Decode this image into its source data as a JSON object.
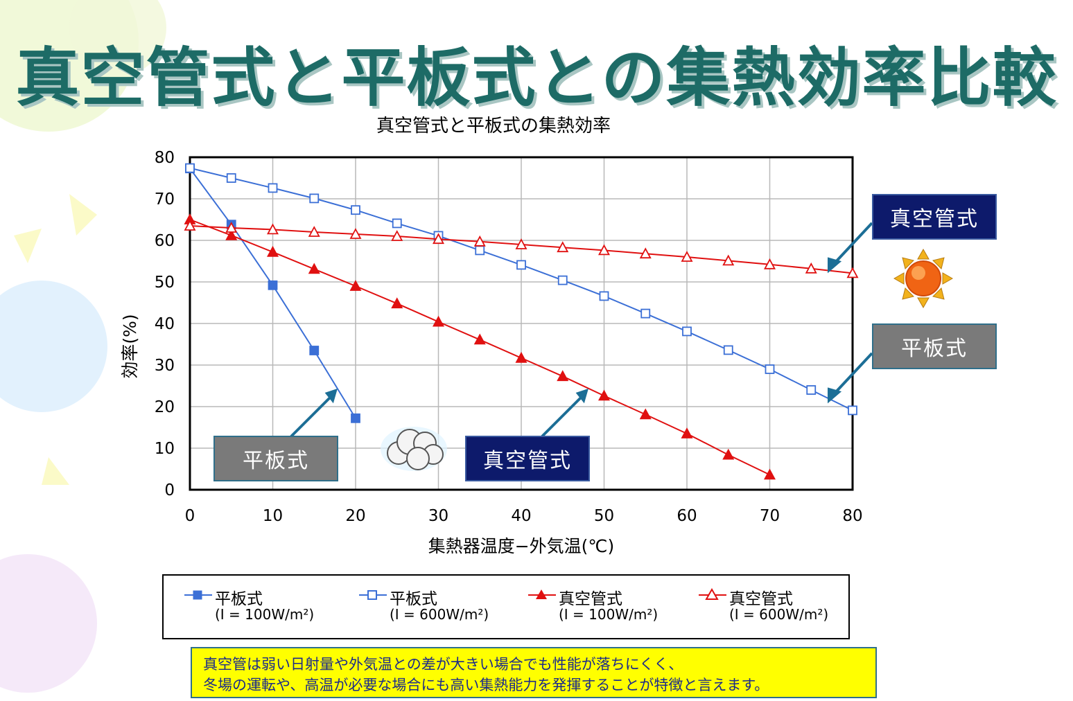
{
  "slide_title": "真空管式と平板式との集熱効率比較",
  "chart_data": {
    "type": "line",
    "title": "真空管式と平板式の集熱効率",
    "xlabel": "集熱器温度−外気温(℃)",
    "ylabel": "効率(%)",
    "xlim": [
      0,
      80
    ],
    "ylim": [
      0,
      80
    ],
    "xticks": [
      "0",
      "10",
      "20",
      "30",
      "40",
      "50",
      "60",
      "70",
      "80"
    ],
    "yticks": [
      "0",
      "10",
      "20",
      "30",
      "40",
      "50",
      "60",
      "70",
      "80"
    ],
    "grid": true,
    "legend_position": "bottom",
    "series": [
      {
        "name": "平板式",
        "condition": "(I = 100W/m²)",
        "color": "#3b6fd6",
        "marker": "square-filled",
        "x": [
          0,
          5,
          10,
          15,
          20
        ],
        "y": [
          77.3,
          63.8,
          49.2,
          33.5,
          17.2
        ]
      },
      {
        "name": "平板式",
        "condition": "(I = 600W/m²)",
        "color": "#3b6fd6",
        "marker": "square-open",
        "x": [
          0,
          5,
          10,
          15,
          20,
          25,
          30,
          35,
          40,
          45,
          50,
          55,
          60,
          65,
          70,
          75,
          80
        ],
        "y": [
          77.4,
          75.0,
          72.6,
          70.1,
          67.3,
          64.1,
          61.1,
          57.6,
          54.1,
          50.4,
          46.6,
          42.4,
          38.1,
          33.6,
          29.0,
          24.0,
          19.1
        ]
      },
      {
        "name": "真空管式",
        "condition": "(I = 100W/m²)",
        "color": "#e01010",
        "marker": "triangle-filled",
        "x": [
          0,
          5,
          10,
          15,
          20,
          25,
          30,
          35,
          40,
          45,
          50,
          55,
          60,
          65,
          70
        ],
        "y": [
          65.0,
          61.2,
          57.2,
          53.1,
          49.0,
          44.8,
          40.4,
          36.1,
          31.7,
          27.3,
          22.6,
          18.1,
          13.5,
          8.4,
          3.6
        ]
      },
      {
        "name": "真空管式",
        "condition": "(I = 600W/m²)",
        "color": "#e01010",
        "marker": "triangle-open",
        "x": [
          0,
          5,
          10,
          15,
          20,
          25,
          30,
          35,
          40,
          45,
          50,
          55,
          60,
          65,
          70,
          75,
          80
        ],
        "y": [
          63.5,
          63.0,
          62.6,
          62.0,
          61.5,
          61.0,
          60.3,
          59.7,
          59.0,
          58.3,
          57.6,
          56.8,
          56.0,
          55.1,
          54.2,
          53.2,
          52.1
        ]
      }
    ]
  },
  "callouts": {
    "vacuum_right": "真空管式",
    "flat_right": "平板式",
    "flat_left": "平板式",
    "vacuum_center": "真空管式"
  },
  "colors": {
    "title": "#1d6b66",
    "callout_gray": "#7a7a7a",
    "callout_navy": "#0d1a6b",
    "note_bg": "#ffff00",
    "note_text": "#1b2a8a"
  },
  "icons": {
    "sun": "sun-icon",
    "cloud": "cloud-icon"
  },
  "note": {
    "line1": "真空管は弱い日射量や外気温との差が大きい場合でも性能が落ちにくく、",
    "line2": "冬場の運転や、高温が必要な場合にも高い集熱能力を発揮することが特徴と言えます。"
  }
}
